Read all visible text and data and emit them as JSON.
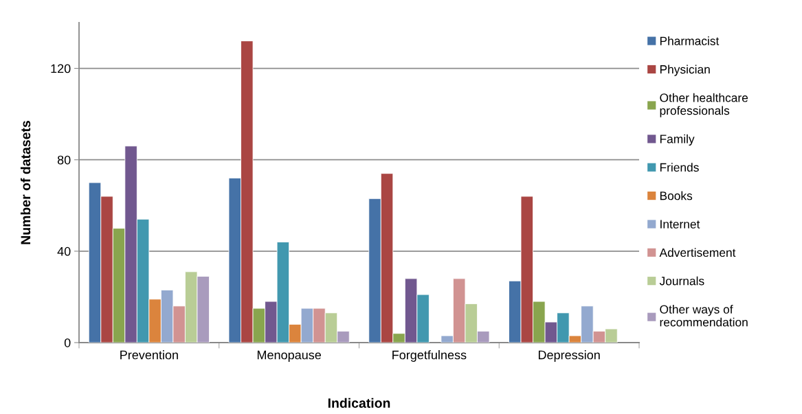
{
  "chart_data": {
    "type": "bar",
    "xlabel": "Indication",
    "ylabel": "Number of datasets",
    "categories": [
      "Prevention",
      "Menopause",
      "Forgetfulness",
      "Depression"
    ],
    "series": [
      {
        "name": "Pharmacist",
        "color": "#4572a7",
        "values": [
          70,
          72,
          63,
          27
        ]
      },
      {
        "name": "Physician",
        "color": "#aa4643",
        "values": [
          64,
          132,
          74,
          64
        ]
      },
      {
        "name": "Other healthcare\nprofessionals",
        "color": "#89a54e",
        "values": [
          50,
          15,
          4,
          18
        ]
      },
      {
        "name": "Family",
        "color": "#71588f",
        "values": [
          86,
          18,
          28,
          9
        ]
      },
      {
        "name": "Friends",
        "color": "#4198af",
        "values": [
          54,
          44,
          21,
          13
        ]
      },
      {
        "name": "Books",
        "color": "#db843d",
        "values": [
          19,
          8,
          null,
          3
        ]
      },
      {
        "name": "Internet",
        "color": "#93a9cf",
        "values": [
          23,
          15,
          3,
          16
        ]
      },
      {
        "name": "Advertisement",
        "color": "#d19392",
        "values": [
          16,
          15,
          28,
          5
        ]
      },
      {
        "name": "Journals",
        "color": "#b9cd96",
        "values": [
          31,
          13,
          17,
          6
        ]
      },
      {
        "name": "Other ways of\nrecommendation",
        "color": "#a99bbd",
        "values": [
          29,
          5,
          5,
          null
        ]
      }
    ],
    "ylim": [
      0,
      140
    ],
    "yticks": [
      0,
      40,
      80,
      120
    ],
    "grid": "y",
    "legend": "right"
  }
}
